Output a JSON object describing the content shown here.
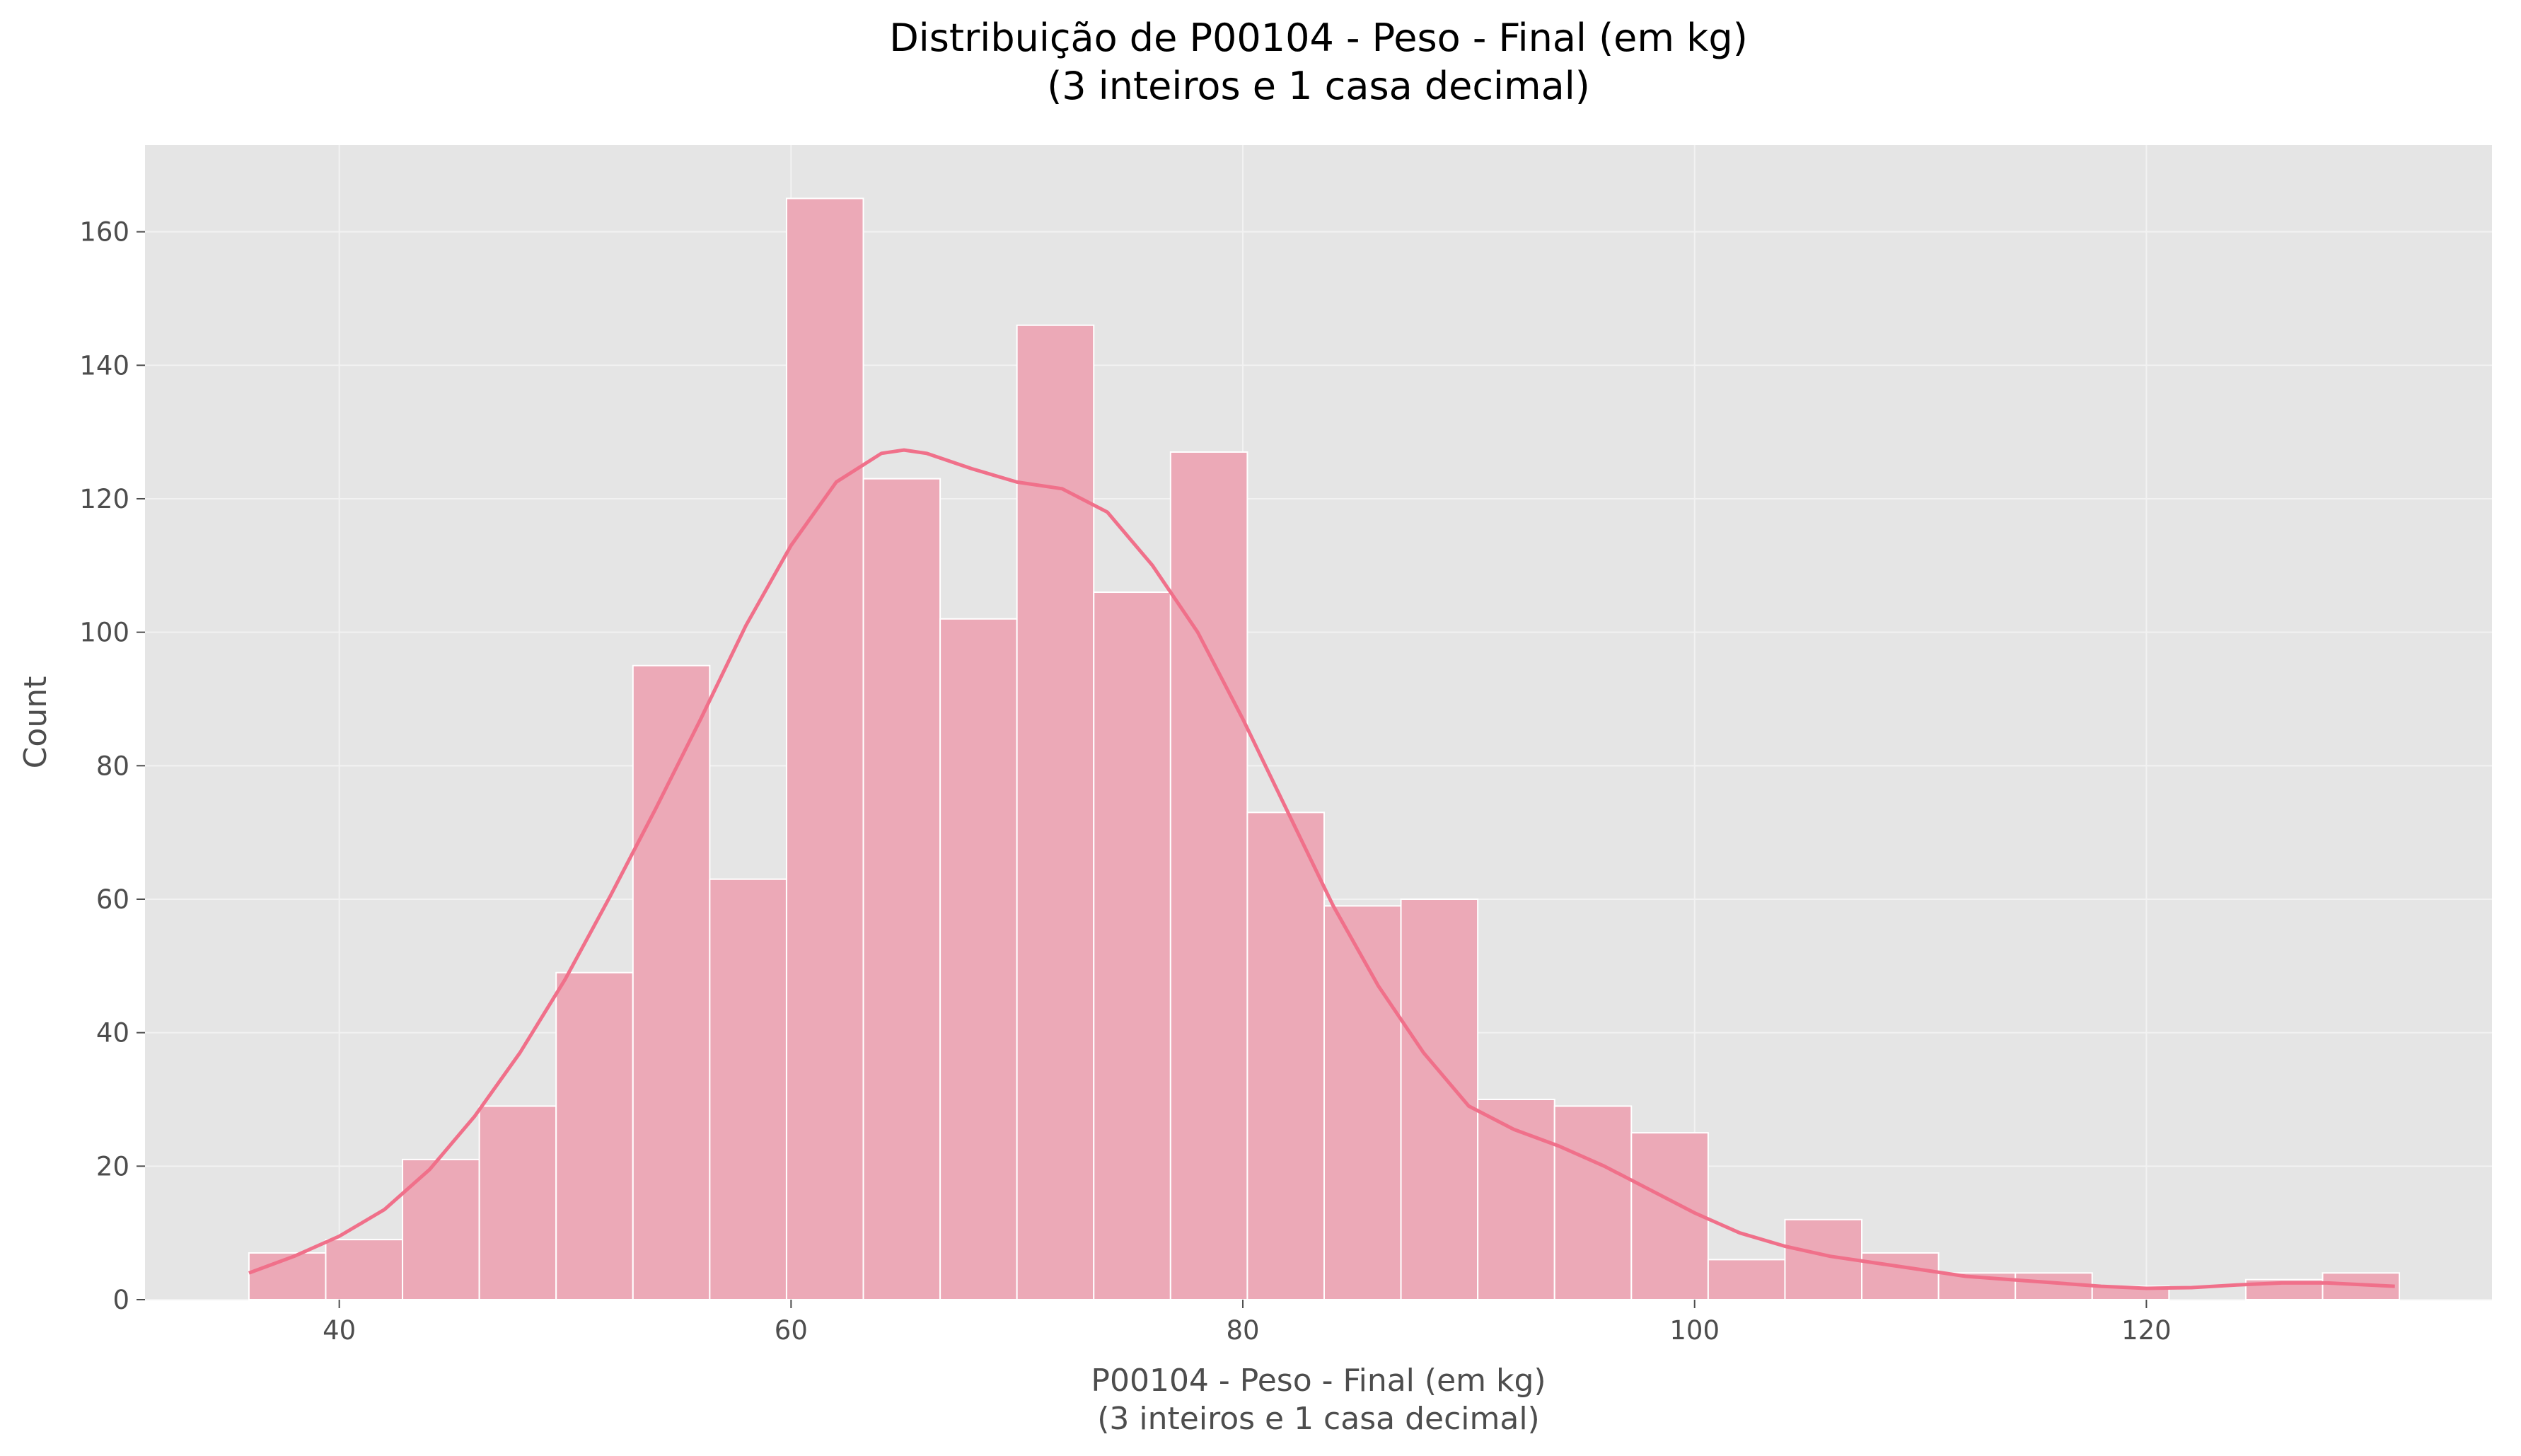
{
  "chart_data": {
    "type": "bar",
    "title": "Distribuição de P00104 - Peso - Final (em kg)",
    "subtitle": "(3 inteiros e 1 casa decimal)",
    "xlabel": "P00104 - Peso - Final (em kg)",
    "xlabel_sub": "(3 inteiros e 1 casa decimal)",
    "ylabel": "Count",
    "xlim": [
      31.4,
      135.3
    ],
    "ylim": [
      0,
      173
    ],
    "xticks": [
      40,
      60,
      80,
      100,
      120
    ],
    "yticks": [
      0,
      20,
      40,
      60,
      80,
      100,
      120,
      140,
      160
    ],
    "grid": true,
    "bin_edges": [
      36.0,
      39.4,
      42.8,
      46.2,
      49.6,
      53.0,
      56.4,
      59.8,
      63.2,
      66.6,
      70.0,
      73.4,
      76.8,
      80.2,
      83.6,
      87.0,
      90.4,
      93.8,
      97.2,
      100.6,
      104.0,
      107.4,
      110.8,
      114.2,
      117.6,
      121.0,
      124.4,
      127.8,
      131.2
    ],
    "counts": [
      7,
      9,
      21,
      29,
      49,
      95,
      63,
      165,
      123,
      102,
      146,
      106,
      127,
      73,
      59,
      60,
      30,
      29,
      25,
      6,
      12,
      7,
      4,
      4,
      2,
      0,
      3,
      4
    ],
    "kde": {
      "x": [
        36,
        38,
        40,
        42,
        44,
        46,
        48,
        50,
        52,
        54,
        56,
        58,
        60,
        62,
        64,
        65,
        66,
        68,
        70,
        72,
        74,
        76,
        78,
        80,
        82,
        84,
        86,
        88,
        90,
        92,
        94,
        96,
        98,
        100,
        102,
        104,
        106,
        108,
        110,
        112,
        114,
        116,
        118,
        120,
        122,
        124,
        126,
        128,
        131
      ],
      "y": [
        4,
        6.5,
        9.5,
        13.5,
        19.5,
        27.5,
        37,
        48,
        60.5,
        73.5,
        87,
        101,
        113,
        122.5,
        126.8,
        127.3,
        126.8,
        124.5,
        122.5,
        121.5,
        118,
        110,
        100,
        87,
        73,
        59,
        47,
        37,
        29,
        25.5,
        23,
        20,
        16.5,
        13,
        10,
        8,
        6.5,
        5.5,
        4.5,
        3.5,
        3,
        2.5,
        2,
        1.7,
        1.8,
        2.2,
        2.5,
        2.5,
        2
      ]
    },
    "colors": {
      "bar_fill": "#eca9b7",
      "bar_edge": "#ffffff",
      "kde_line": "#f0708a",
      "plot_background": "#e5e5e5",
      "grid": "#f2f2f2"
    }
  }
}
